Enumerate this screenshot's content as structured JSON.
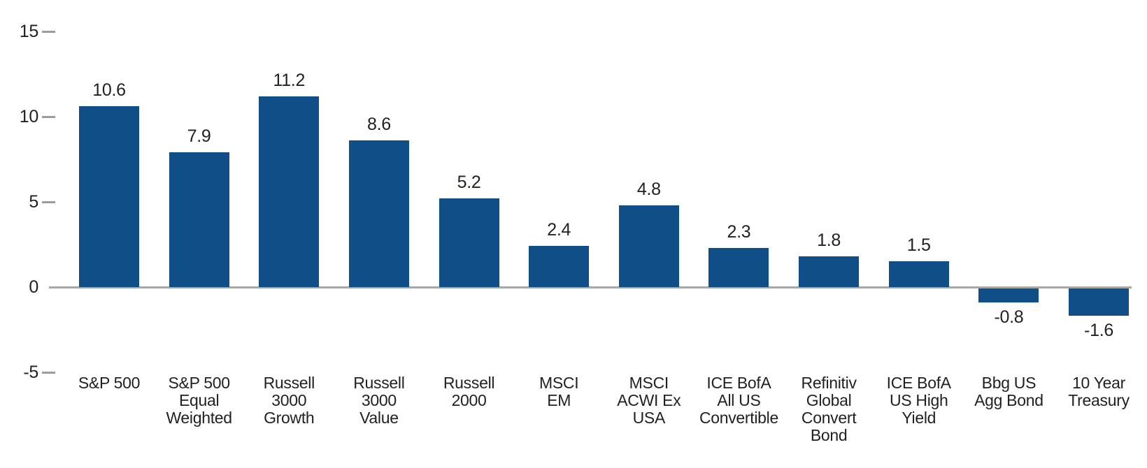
{
  "chart_data": {
    "type": "bar",
    "categories": [
      "S&P 500",
      "S&P 500\nEqual\nWeighted",
      "Russell\n3000\nGrowth",
      "Russell\n3000\nValue",
      "Russell\n2000",
      "MSCI\nEM",
      "MSCI\nACWI Ex\nUSA",
      "ICE BofA\nAll US\nConvertible",
      "Refinitiv\nGlobal\nConvert\nBond",
      "ICE BofA\nUS High\nYield",
      "Bbg US\nAgg Bond",
      "10 Year\nTreasury"
    ],
    "values": [
      10.6,
      7.9,
      11.2,
      8.6,
      5.2,
      2.4,
      4.8,
      2.3,
      1.8,
      1.5,
      -0.8,
      -1.6
    ],
    "value_labels": [
      "10.6",
      "7.9",
      "11.2",
      "8.6",
      "5.2",
      "2.4",
      "4.8",
      "2.3",
      "1.8",
      "1.5",
      "-0.8",
      "-1.6"
    ],
    "title": "",
    "xlabel": "",
    "ylabel": "",
    "ylim": [
      -5,
      15
    ],
    "yticks": [
      15,
      10,
      5,
      0,
      -5
    ],
    "grid": false,
    "legend": "none",
    "colors": {
      "bar": "#0f4e86",
      "axis": "#a7a7a7",
      "tick_dash": "#9b9b9b",
      "text": "#221f20"
    }
  }
}
